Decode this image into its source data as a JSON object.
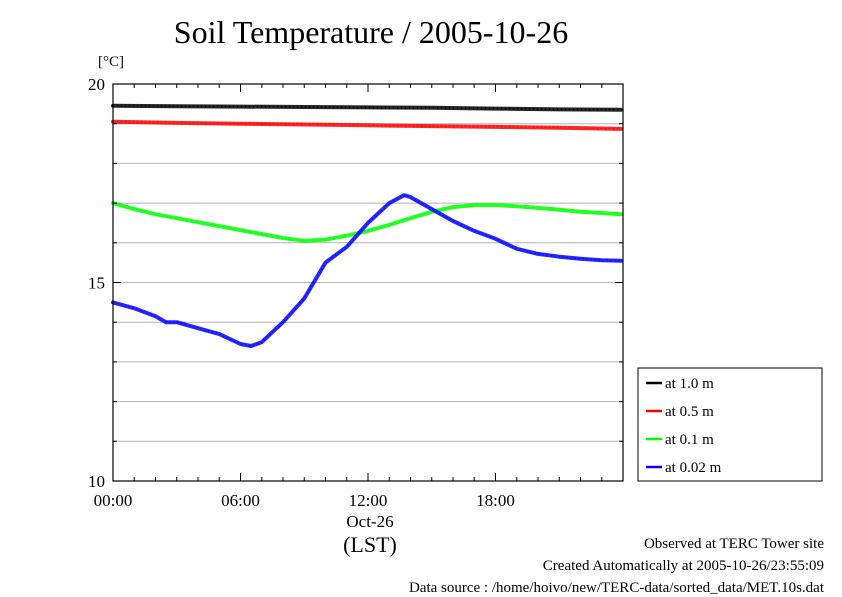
{
  "title": "Soil Temperature / 2005-10-26",
  "unit": "[°C]",
  "date_label": "Oct-26",
  "tz_label": "(LST)",
  "footer": {
    "observed": "Observed at TERC Tower site",
    "created": "Created Automatically at 2005-10-26/23:55:09",
    "source": "Data source : /home/hoivo/new/TERC-data/sorted_data/MET.10s.dat"
  },
  "chart_data": {
    "type": "line",
    "title": "Soil Temperature / 2005-10-26",
    "ylabel": "[°C]",
    "xlabel": "(LST)",
    "ylim": [
      10,
      20
    ],
    "xlim": [
      0,
      24
    ],
    "x_ticks": [
      {
        "value": 0,
        "label": "00:00"
      },
      {
        "value": 6,
        "label": "06:00"
      },
      {
        "value": 12,
        "label": "12:00"
      },
      {
        "value": 18,
        "label": "18:00"
      }
    ],
    "y_ticks": [
      {
        "value": 10,
        "label": "10"
      },
      {
        "value": 15,
        "label": "15"
      },
      {
        "value": 20,
        "label": "20"
      }
    ],
    "grid": true,
    "legend_position": "bottom-right outside",
    "series": [
      {
        "name": "at 1.0 m",
        "color": "#000000",
        "x": [
          0,
          3,
          6,
          9,
          12,
          15,
          18,
          21,
          23.9
        ],
        "y": [
          19.45,
          19.44,
          19.43,
          19.42,
          19.41,
          19.4,
          19.38,
          19.36,
          19.35
        ]
      },
      {
        "name": "at 0.5 m",
        "color": "#ff0000",
        "x": [
          0,
          3,
          6,
          9,
          12,
          15,
          18,
          21,
          23.9
        ],
        "y": [
          19.05,
          19.02,
          19.0,
          18.98,
          18.96,
          18.94,
          18.92,
          18.9,
          18.87
        ]
      },
      {
        "name": "at 0.1 m",
        "color": "#00ff00",
        "x": [
          0,
          1,
          2,
          3,
          4,
          5,
          6,
          7,
          8,
          9,
          10,
          11,
          12,
          13,
          14,
          15,
          16,
          17,
          18,
          19,
          20,
          21,
          22,
          23,
          23.9
        ],
        "y": [
          17.0,
          16.85,
          16.72,
          16.62,
          16.52,
          16.42,
          16.32,
          16.22,
          16.12,
          16.05,
          16.08,
          16.18,
          16.3,
          16.45,
          16.62,
          16.78,
          16.9,
          16.95,
          16.95,
          16.92,
          16.88,
          16.83,
          16.78,
          16.75,
          16.72
        ]
      },
      {
        "name": "at 0.02 m",
        "color": "#0000ff",
        "x": [
          0,
          1,
          2,
          2.5,
          3,
          4,
          5,
          6,
          6.5,
          7,
          8,
          9,
          10,
          11,
          12,
          13,
          13.7,
          14,
          15,
          16,
          17,
          18,
          19,
          20,
          21,
          22,
          23,
          23.9
        ],
        "y": [
          14.5,
          14.35,
          14.15,
          14.0,
          14.0,
          13.85,
          13.7,
          13.45,
          13.4,
          13.5,
          14.0,
          14.6,
          15.5,
          15.9,
          16.5,
          17.0,
          17.2,
          17.15,
          16.85,
          16.55,
          16.3,
          16.1,
          15.85,
          15.72,
          15.65,
          15.6,
          15.56,
          15.55
        ]
      }
    ]
  }
}
